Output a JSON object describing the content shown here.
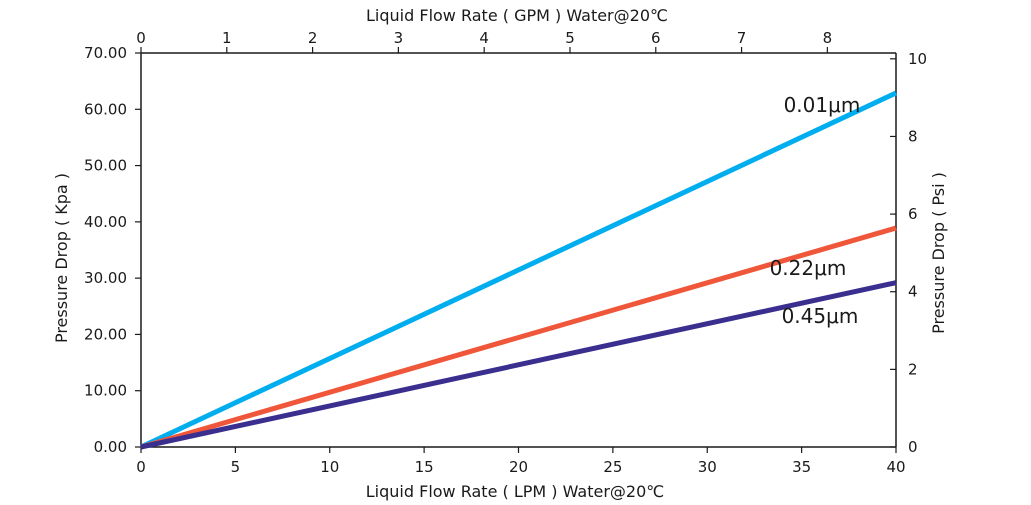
{
  "chart_data": {
    "type": "line",
    "x_bottom": {
      "label": "Liquid Flow Rate ( LPM ) Water@20℃",
      "range": [
        0,
        40
      ],
      "ticks": [
        0,
        5,
        10,
        15,
        20,
        25,
        30,
        35,
        40
      ]
    },
    "x_top": {
      "label": "Liquid Flow Rate ( GPM ) Water@20℃",
      "range": [
        0,
        8.8
      ],
      "ticks": [
        0,
        1,
        2,
        3,
        4,
        5,
        6,
        7,
        8
      ]
    },
    "y_left": {
      "label": "Pressure Drop ( Kpa )",
      "range": [
        0,
        70
      ],
      "ticks": [
        "0.00",
        "10.00",
        "20.00",
        "30.00",
        "40.00",
        "50.00",
        "60.00",
        "70.00"
      ]
    },
    "y_right": {
      "label": "Pressure Drop ( Psi )",
      "range": [
        0,
        10.15
      ],
      "ticks": [
        0,
        2,
        4,
        6,
        8,
        10
      ]
    },
    "grid": false,
    "series": [
      {
        "name": "0.01μm",
        "color": "#00aeef",
        "x": [
          0,
          40
        ],
        "y": [
          0,
          62.9
        ]
      },
      {
        "name": "0.22μm",
        "color": "#f0573a",
        "x": [
          0,
          40
        ],
        "y": [
          0,
          38.9
        ]
      },
      {
        "name": "0.45μm",
        "color": "#3a2f8f",
        "x": [
          0,
          40
        ],
        "y": [
          0,
          29.2
        ]
      }
    ]
  }
}
